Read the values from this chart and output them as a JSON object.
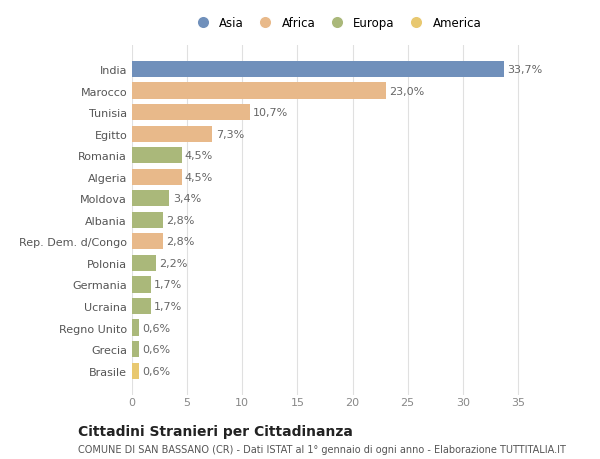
{
  "categories": [
    "India",
    "Marocco",
    "Tunisia",
    "Egitto",
    "Romania",
    "Algeria",
    "Moldova",
    "Albania",
    "Rep. Dem. d/Congo",
    "Polonia",
    "Germania",
    "Ucraina",
    "Regno Unito",
    "Grecia",
    "Brasile"
  ],
  "values": [
    33.7,
    23.0,
    10.7,
    7.3,
    4.5,
    4.5,
    3.4,
    2.8,
    2.8,
    2.2,
    1.7,
    1.7,
    0.6,
    0.6,
    0.6
  ],
  "labels": [
    "33,7%",
    "23,0%",
    "10,7%",
    "7,3%",
    "4,5%",
    "4,5%",
    "3,4%",
    "2,8%",
    "2,8%",
    "2,2%",
    "1,7%",
    "1,7%",
    "0,6%",
    "0,6%",
    "0,6%"
  ],
  "continents": [
    "Asia",
    "Africa",
    "Africa",
    "Africa",
    "Europa",
    "Africa",
    "Europa",
    "Europa",
    "Africa",
    "Europa",
    "Europa",
    "Europa",
    "Europa",
    "Europa",
    "America"
  ],
  "continent_colors": {
    "Asia": "#7090bb",
    "Africa": "#e8b98a",
    "Europa": "#aab87a",
    "America": "#e8c870"
  },
  "legend_order": [
    "Asia",
    "Africa",
    "Europa",
    "America"
  ],
  "title": "Cittadini Stranieri per Cittadinanza",
  "subtitle": "COMUNE DI SAN BASSANO (CR) - Dati ISTAT al 1° gennaio di ogni anno - Elaborazione TUTTITALIA.IT",
  "xlim": [
    0,
    37
  ],
  "xticks": [
    0,
    5,
    10,
    15,
    20,
    25,
    30,
    35
  ],
  "background_color": "#ffffff",
  "grid_color": "#e0e0e0",
  "bar_height": 0.75,
  "label_fontsize": 8,
  "tick_fontsize": 8,
  "title_fontsize": 10,
  "subtitle_fontsize": 7
}
